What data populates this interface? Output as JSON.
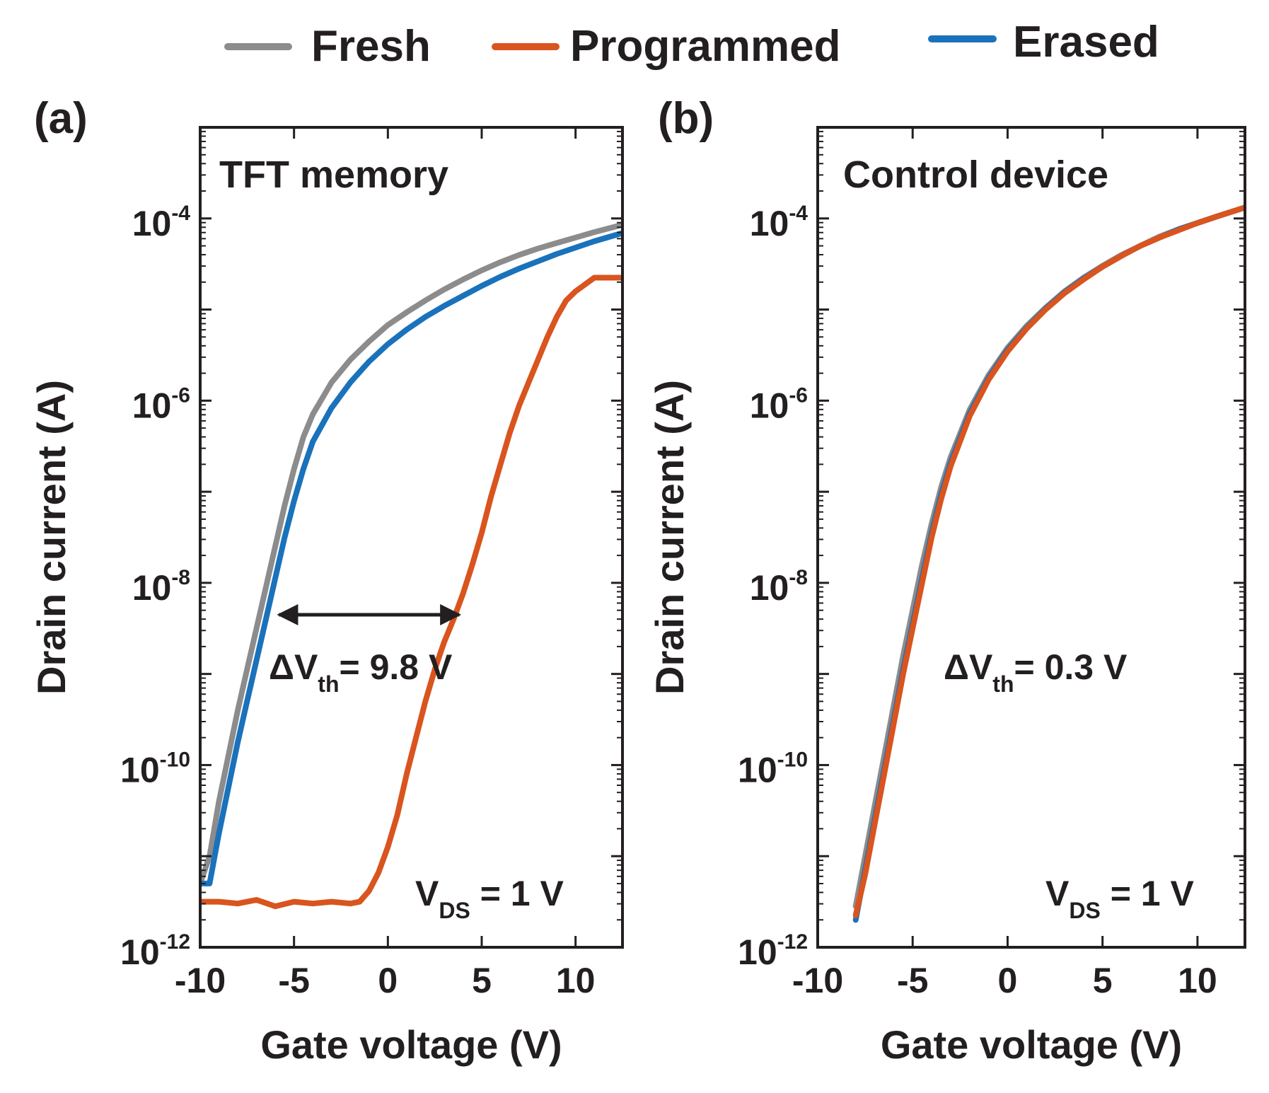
{
  "legend": [
    {
      "label": "Fresh",
      "color": "#8c8c8c"
    },
    {
      "label": "Programmed",
      "color": "#d9541e"
    },
    {
      "label": "Erased",
      "color": "#1a72bb"
    }
  ],
  "chart_data": [
    {
      "type": "line",
      "panel_label": "(a)",
      "inner_title": "TFT memory",
      "xlabel": "Gate voltage (V)",
      "ylabel": "Drain current (A)",
      "yscale": "log",
      "xlim": [
        -10,
        12.5
      ],
      "ylim_exponent": [
        -12,
        -3
      ],
      "xticks": [
        -10,
        -5,
        0,
        5,
        10
      ],
      "xtick_labels": [
        "-10",
        "-5",
        "0",
        "5",
        "10"
      ],
      "ytick_base": "10",
      "ytick_exponents": [
        "-12",
        "-10",
        "-8",
        "-6",
        "-4"
      ],
      "ytick_values": [
        -12,
        -10,
        -8,
        -6,
        -4
      ],
      "annotation": {
        "prefix": "ΔV",
        "sub": "th",
        "suffix": "= 9.8 V"
      },
      "vds": {
        "prefix": "V",
        "sub": "DS",
        "suffix": " = 1 V"
      },
      "arrow": {
        "x_from": -5.8,
        "x_to": 3.8,
        "log_y": -8.35
      },
      "series": [
        {
          "name": "Fresh",
          "color": "#8c8c8c",
          "x": [
            -10,
            -9.5,
            -9,
            -8.5,
            -8,
            -7.5,
            -7,
            -6.5,
            -6,
            -5.5,
            -5,
            -4.5,
            -4,
            -3,
            -2,
            -1,
            0,
            1,
            2,
            3,
            4,
            5,
            6,
            7,
            8,
            9,
            10,
            11,
            12.5
          ],
          "log_y": [
            -11.3,
            -11.0,
            -10.4,
            -9.9,
            -9.4,
            -8.95,
            -8.5,
            -8.05,
            -7.6,
            -7.15,
            -6.75,
            -6.4,
            -6.15,
            -5.8,
            -5.55,
            -5.35,
            -5.17,
            -5.03,
            -4.9,
            -4.78,
            -4.67,
            -4.57,
            -4.48,
            -4.4,
            -4.33,
            -4.27,
            -4.21,
            -4.15,
            -4.07
          ]
        },
        {
          "name": "Erased",
          "color": "#1a72bb",
          "x": [
            -10,
            -9.5,
            -9,
            -8.5,
            -8,
            -7.5,
            -7,
            -6.5,
            -6,
            -5.5,
            -5,
            -4.5,
            -4,
            -3,
            -2,
            -1,
            0,
            1,
            2,
            3,
            4,
            5,
            6,
            7,
            8,
            9,
            10,
            11,
            12.5
          ],
          "log_y": [
            -11.3,
            -11.3,
            -10.75,
            -10.25,
            -9.75,
            -9.3,
            -8.85,
            -8.4,
            -7.95,
            -7.5,
            -7.1,
            -6.75,
            -6.45,
            -6.08,
            -5.8,
            -5.57,
            -5.38,
            -5.22,
            -5.08,
            -4.96,
            -4.85,
            -4.74,
            -4.64,
            -4.55,
            -4.47,
            -4.39,
            -4.32,
            -4.25,
            -4.16
          ]
        },
        {
          "name": "Programmed",
          "color": "#d9541e",
          "x": [
            -10,
            -9,
            -8,
            -7,
            -6,
            -5,
            -4,
            -3,
            -2,
            -1.5,
            -1,
            -0.5,
            0,
            0.5,
            1,
            1.5,
            2,
            2.5,
            3,
            3.5,
            4,
            4.5,
            5,
            5.5,
            6,
            6.5,
            7,
            7.5,
            8,
            8.5,
            9,
            9.5,
            10,
            11,
            12.5
          ],
          "log_y": [
            -11.5,
            -11.5,
            -11.52,
            -11.48,
            -11.55,
            -11.5,
            -11.52,
            -11.5,
            -11.52,
            -11.5,
            -11.38,
            -11.18,
            -10.9,
            -10.55,
            -10.1,
            -9.7,
            -9.3,
            -8.95,
            -8.65,
            -8.4,
            -8.12,
            -7.8,
            -7.45,
            -7.05,
            -6.7,
            -6.35,
            -6.05,
            -5.8,
            -5.55,
            -5.3,
            -5.08,
            -4.9,
            -4.8,
            -4.65,
            -4.65
          ]
        }
      ]
    },
    {
      "type": "line",
      "panel_label": "(b)",
      "inner_title": "Control device",
      "xlabel": "Gate voltage (V)",
      "ylabel": "Drain current (A)",
      "yscale": "log",
      "xlim": [
        -10,
        12.5
      ],
      "ylim_exponent": [
        -12,
        -3
      ],
      "xticks": [
        -10,
        -5,
        0,
        5,
        10
      ],
      "xtick_labels": [
        "-10",
        "-5",
        "0",
        "5",
        "10"
      ],
      "ytick_base": "10",
      "ytick_exponents": [
        "-12",
        "-10",
        "-8",
        "-6",
        "-4"
      ],
      "ytick_values": [
        -12,
        -10,
        -8,
        -6,
        -4
      ],
      "annotation": {
        "prefix": "ΔV",
        "sub": "th",
        "suffix": "= 0.3 V"
      },
      "vds": {
        "prefix": "V",
        "sub": "DS",
        "suffix": " = 1 V"
      },
      "series": [
        {
          "name": "Fresh",
          "color": "#8c8c8c",
          "x": [
            -8,
            -7.5,
            -7,
            -6.5,
            -6,
            -5.5,
            -5,
            -4.5,
            -4,
            -3.5,
            -3,
            -2,
            -1,
            0,
            1,
            2,
            3,
            4,
            5,
            6,
            7,
            8,
            9,
            10,
            11,
            12.5
          ],
          "log_y": [
            -11.55,
            -11.0,
            -10.45,
            -9.9,
            -9.35,
            -8.8,
            -8.3,
            -7.8,
            -7.35,
            -6.95,
            -6.62,
            -6.1,
            -5.72,
            -5.42,
            -5.18,
            -4.98,
            -4.8,
            -4.65,
            -4.52,
            -4.4,
            -4.3,
            -4.2,
            -4.12,
            -4.05,
            -3.98,
            -3.88
          ]
        },
        {
          "name": "Erased",
          "color": "#1a72bb",
          "x": [
            -8,
            -7.5,
            -7,
            -6.5,
            -6,
            -5.5,
            -5,
            -4.5,
            -4,
            -3.5,
            -3,
            -2,
            -1,
            0,
            1,
            2,
            3,
            4,
            5,
            6,
            7,
            8,
            9,
            10,
            11,
            12.5
          ],
          "log_y": [
            -11.7,
            -11.15,
            -10.6,
            -10.05,
            -9.5,
            -8.95,
            -8.45,
            -7.95,
            -7.45,
            -7.03,
            -6.68,
            -6.14,
            -5.75,
            -5.44,
            -5.2,
            -4.99,
            -4.81,
            -4.66,
            -4.53,
            -4.41,
            -4.3,
            -4.21,
            -4.12,
            -4.05,
            -3.98,
            -3.88
          ]
        },
        {
          "name": "Programmed",
          "color": "#d9541e",
          "x": [
            -8,
            -7.5,
            -7,
            -6.5,
            -6,
            -5.5,
            -5,
            -4.5,
            -4,
            -3.5,
            -3,
            -2,
            -1,
            0,
            1,
            2,
            3,
            4,
            5,
            6,
            7,
            8,
            9,
            10,
            11,
            12.5
          ],
          "log_y": [
            -11.65,
            -11.2,
            -10.65,
            -10.1,
            -9.55,
            -9.0,
            -8.5,
            -8.0,
            -7.5,
            -7.08,
            -6.72,
            -6.17,
            -5.77,
            -5.46,
            -5.21,
            -5.0,
            -4.82,
            -4.67,
            -4.53,
            -4.41,
            -4.3,
            -4.21,
            -4.13,
            -4.05,
            -3.98,
            -3.88
          ]
        }
      ]
    }
  ]
}
